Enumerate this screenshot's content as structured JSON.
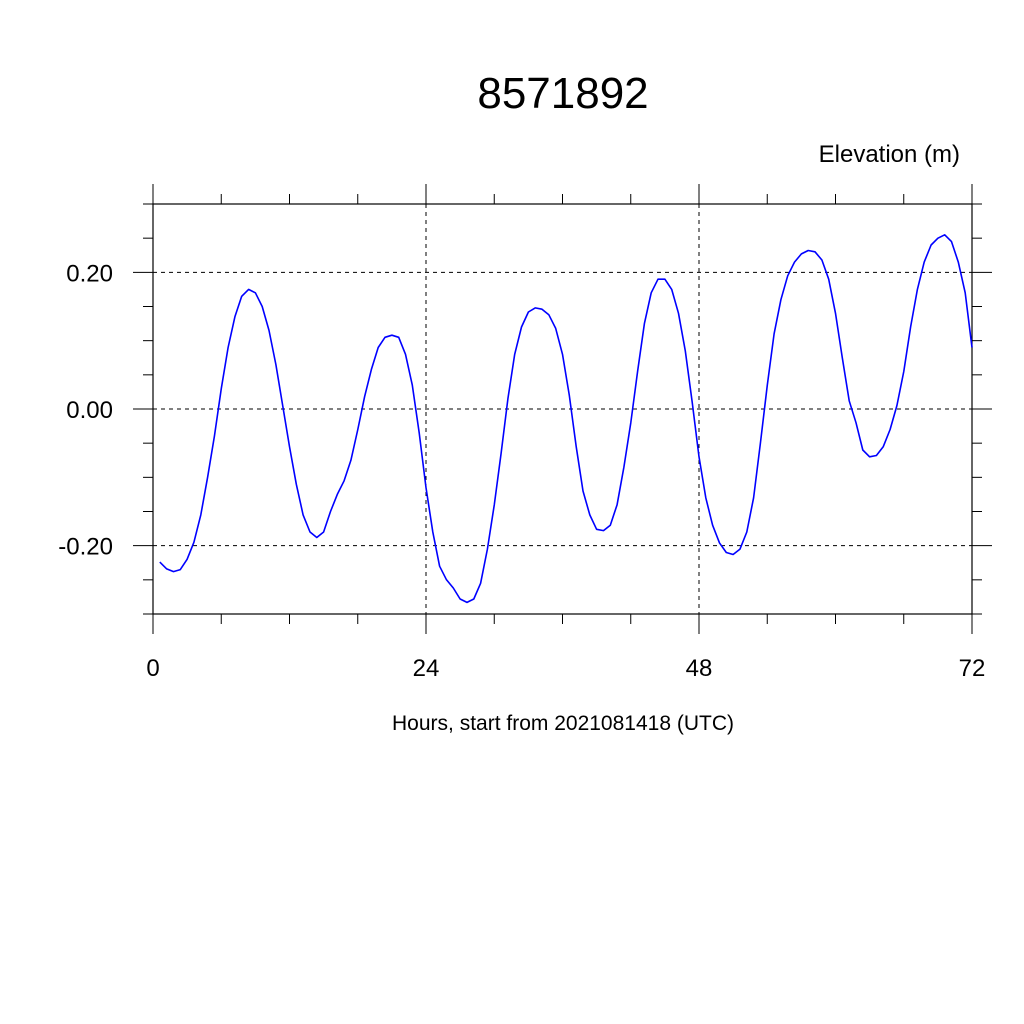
{
  "chart_data": {
    "type": "line",
    "title": "8571892",
    "ylabel": "Elevation (m)",
    "xlabel": "Hours, start from 2021081418 (UTC)",
    "xlim": [
      0,
      72
    ],
    "ylim": [
      -0.3,
      0.3
    ],
    "xticks": [
      0,
      24,
      48,
      72
    ],
    "xtick_labels": [
      "0",
      "24",
      "48",
      "72"
    ],
    "yticks": [
      -0.2,
      0.0,
      0.2
    ],
    "ytick_labels": [
      "-0.20",
      "0.00",
      "0.20"
    ],
    "grid": "dashed at major ticks",
    "legend": "none",
    "series": [
      {
        "color": "#0000ff",
        "x": [
          0.6,
          1.2,
          1.8,
          2.4,
          3.0,
          3.6,
          4.2,
          4.8,
          5.4,
          6.0,
          6.6,
          7.2,
          7.8,
          8.4,
          9.0,
          9.6,
          10.2,
          10.8,
          11.4,
          12.0,
          12.6,
          13.2,
          13.8,
          14.4,
          15.0,
          15.6,
          16.2,
          16.8,
          17.4,
          18.0,
          18.6,
          19.2,
          19.8,
          20.4,
          21.0,
          21.6,
          22.2,
          22.8,
          23.4,
          24.0,
          24.6,
          25.2,
          25.8,
          26.4,
          27.0,
          27.6,
          28.2,
          28.8,
          29.4,
          30.0,
          30.6,
          31.2,
          31.8,
          32.4,
          33.0,
          33.6,
          34.2,
          34.8,
          35.4,
          36.0,
          36.6,
          37.2,
          37.8,
          38.4,
          39.0,
          39.6,
          40.2,
          40.8,
          41.4,
          42.0,
          42.6,
          43.2,
          43.8,
          44.4,
          45.0,
          45.6,
          46.2,
          46.8,
          47.4,
          48.0,
          48.6,
          49.2,
          49.8,
          50.4,
          51.0,
          51.6,
          52.2,
          52.8,
          53.4,
          54.0,
          54.6,
          55.2,
          55.8,
          56.4,
          57.0,
          57.6,
          58.2,
          58.8,
          59.4,
          60.0,
          60.6,
          61.2,
          61.8,
          62.4,
          63.0,
          63.6,
          64.2,
          64.8,
          65.4,
          66.0,
          66.6,
          67.2,
          67.8,
          68.4,
          69.0,
          69.6,
          70.2,
          70.8,
          71.4,
          72.0
        ],
        "y": [
          -0.224,
          -0.234,
          -0.238,
          -0.235,
          -0.22,
          -0.195,
          -0.155,
          -0.1,
          -0.04,
          0.03,
          0.09,
          0.135,
          0.165,
          0.175,
          0.17,
          0.15,
          0.115,
          0.065,
          0.005,
          -0.055,
          -0.11,
          -0.155,
          -0.18,
          -0.188,
          -0.18,
          -0.15,
          -0.125,
          -0.105,
          -0.075,
          -0.03,
          0.018,
          0.058,
          0.09,
          0.105,
          0.108,
          0.105,
          0.08,
          0.035,
          -0.035,
          -0.115,
          -0.18,
          -0.23,
          -0.25,
          -0.262,
          -0.278,
          -0.283,
          -0.278,
          -0.255,
          -0.205,
          -0.14,
          -0.065,
          0.015,
          0.08,
          0.12,
          0.142,
          0.148,
          0.146,
          0.138,
          0.118,
          0.08,
          0.02,
          -0.055,
          -0.12,
          -0.155,
          -0.176,
          -0.178,
          -0.17,
          -0.14,
          -0.085,
          -0.02,
          0.055,
          0.125,
          0.17,
          0.19,
          0.19,
          0.175,
          0.14,
          0.085,
          0.01,
          -0.07,
          -0.13,
          -0.17,
          -0.196,
          -0.21,
          -0.213,
          -0.205,
          -0.18,
          -0.13,
          -0.05,
          0.035,
          0.11,
          0.16,
          0.195,
          0.215,
          0.227,
          0.232,
          0.23,
          0.218,
          0.19,
          0.14,
          0.075,
          0.012,
          -0.02,
          -0.06,
          -0.07,
          -0.068,
          -0.055,
          -0.03,
          0.005,
          0.055,
          0.12,
          0.175,
          0.215,
          0.24,
          0.25,
          0.255,
          0.245,
          0.215,
          0.17,
          0.09
        ]
      }
    ]
  }
}
